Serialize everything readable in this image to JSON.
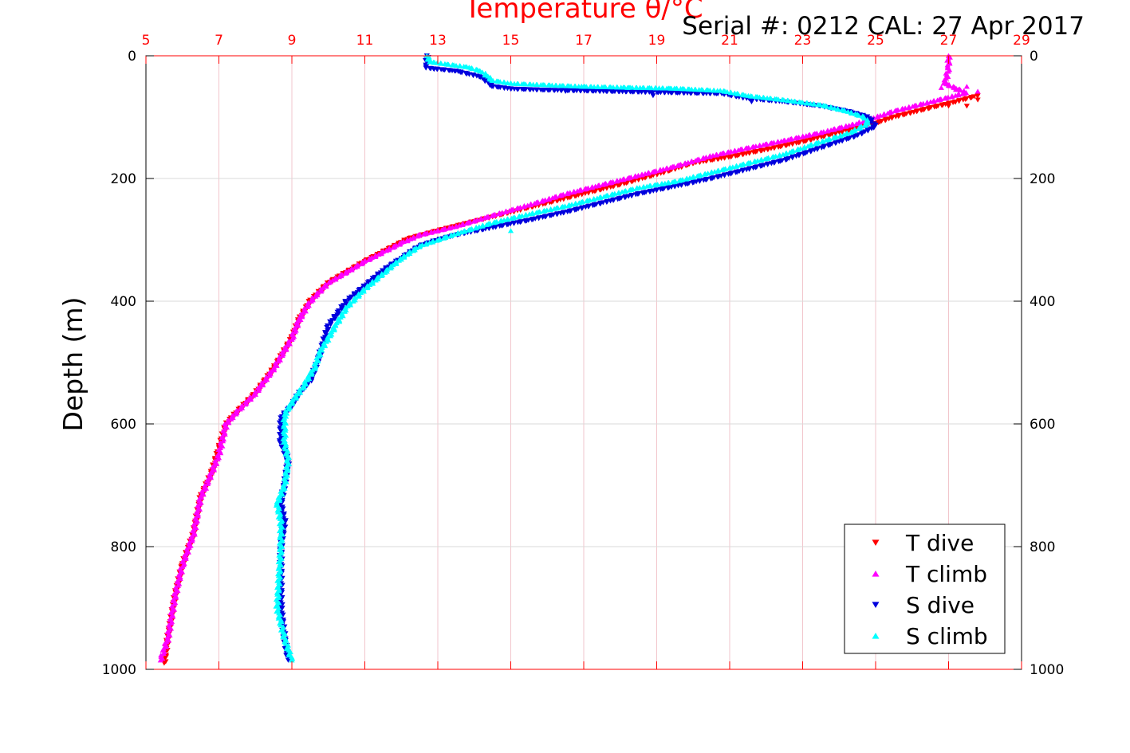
{
  "chart_data": {
    "type": "scatter",
    "title": "Temperature θ/°C",
    "subtitle": "Serial #: 0212  CAL: 27 Apr 2017",
    "xlabel": "Temperature θ/°C",
    "ylabel": "Depth (m)",
    "xlim": [
      5,
      29
    ],
    "ylim": [
      0,
      1000
    ],
    "y_reversed": true,
    "x_ticks": [
      5,
      7,
      9,
      11,
      13,
      15,
      17,
      19,
      21,
      23,
      25,
      27,
      29
    ],
    "y_ticks": [
      0,
      200,
      400,
      600,
      800,
      1000
    ],
    "grid": true,
    "legend_position": "bottom-right",
    "colors": {
      "top_axis": "#ff0000",
      "side_axis": "#000000",
      "grid_vertical": "#f2c6cc",
      "grid_horizontal": "#d9d9d9"
    },
    "series": [
      {
        "name": "T dive",
        "marker": "triangle-down",
        "color": "#ff0000",
        "profile": [
          [
            27.8,
            65
          ],
          [
            27.2,
            75
          ],
          [
            26.5,
            85
          ],
          [
            25.5,
            100
          ],
          [
            25.0,
            110
          ],
          [
            24.0,
            125
          ],
          [
            23.0,
            140
          ],
          [
            22.0,
            153
          ],
          [
            21.0,
            165
          ],
          [
            20.0,
            175
          ],
          [
            19.2,
            190
          ],
          [
            18.0,
            210
          ],
          [
            17.0,
            225
          ],
          [
            16.0,
            240
          ],
          [
            15.0,
            255
          ],
          [
            14.0,
            270
          ],
          [
            13.0,
            285
          ],
          [
            12.2,
            298
          ],
          [
            11.8,
            310
          ],
          [
            11.0,
            335
          ],
          [
            10.0,
            370
          ],
          [
            9.5,
            400
          ],
          [
            9.2,
            430
          ],
          [
            9.0,
            460
          ],
          [
            8.5,
            510
          ],
          [
            8.0,
            550
          ],
          [
            7.5,
            580
          ],
          [
            7.2,
            600
          ],
          [
            7.0,
            640
          ],
          [
            6.8,
            680
          ],
          [
            6.5,
            720
          ],
          [
            6.3,
            780
          ],
          [
            6.0,
            830
          ],
          [
            5.8,
            880
          ],
          [
            5.6,
            950
          ],
          [
            5.5,
            990
          ]
        ],
        "scatter": [
          [
            27.8,
            72
          ],
          [
            27.5,
            82
          ],
          [
            27.0,
            82
          ]
        ]
      },
      {
        "name": "T climb",
        "marker": "triangle-up",
        "color": "#ff00ff",
        "profile": [
          [
            27.0,
            0
          ],
          [
            27.0,
            20
          ],
          [
            26.9,
            45
          ],
          [
            27.3,
            55
          ],
          [
            27.5,
            60
          ],
          [
            26.5,
            75
          ],
          [
            25.5,
            90
          ],
          [
            25.0,
            100
          ],
          [
            24.5,
            110
          ],
          [
            23.5,
            125
          ],
          [
            22.5,
            138
          ],
          [
            21.5,
            150
          ],
          [
            20.5,
            163
          ],
          [
            19.5,
            180
          ],
          [
            18.5,
            195
          ],
          [
            17.5,
            210
          ],
          [
            16.5,
            225
          ],
          [
            15.5,
            243
          ],
          [
            14.5,
            260
          ],
          [
            13.5,
            278
          ],
          [
            12.5,
            292
          ],
          [
            12.0,
            305
          ],
          [
            11.5,
            320
          ],
          [
            11.0,
            335
          ],
          [
            10.0,
            370
          ],
          [
            9.5,
            400
          ],
          [
            9.2,
            430
          ],
          [
            9.0,
            460
          ],
          [
            8.5,
            510
          ],
          [
            8.0,
            550
          ],
          [
            7.5,
            580
          ],
          [
            7.2,
            600
          ],
          [
            7.0,
            650
          ],
          [
            6.8,
            680
          ],
          [
            6.5,
            720
          ],
          [
            6.3,
            780
          ],
          [
            6.0,
            830
          ],
          [
            5.8,
            880
          ],
          [
            5.6,
            950
          ],
          [
            5.4,
            985
          ]
        ],
        "scatter": [
          [
            27.5,
            50
          ],
          [
            27.2,
            55
          ],
          [
            26.8,
            52
          ],
          [
            27.8,
            58
          ]
        ]
      },
      {
        "name": "S dive",
        "marker": "triangle-down",
        "color": "#0000dd",
        "profile": [
          [
            12.7,
            0
          ],
          [
            12.7,
            20
          ],
          [
            13.5,
            25
          ],
          [
            14.2,
            35
          ],
          [
            14.5,
            50
          ],
          [
            15.0,
            54
          ],
          [
            16.0,
            56
          ],
          [
            20.8,
            62
          ],
          [
            21.5,
            70
          ],
          [
            22.5,
            75
          ],
          [
            23.5,
            82
          ],
          [
            24.2,
            90
          ],
          [
            24.8,
            100
          ],
          [
            25.0,
            115
          ],
          [
            24.5,
            130
          ],
          [
            23.5,
            150
          ],
          [
            22.5,
            170
          ],
          [
            21.5,
            185
          ],
          [
            20.5,
            200
          ],
          [
            19.5,
            213
          ],
          [
            18.5,
            225
          ],
          [
            17.5,
            240
          ],
          [
            16.5,
            255
          ],
          [
            15.5,
            268
          ],
          [
            14.5,
            280
          ],
          [
            13.5,
            292
          ],
          [
            13.0,
            300
          ],
          [
            12.5,
            310
          ],
          [
            12.0,
            330
          ],
          [
            11.5,
            350
          ],
          [
            11.0,
            375
          ],
          [
            10.5,
            400
          ],
          [
            10.0,
            440
          ],
          [
            9.8,
            480
          ],
          [
            9.7,
            500
          ],
          [
            9.5,
            530
          ],
          [
            9.2,
            550
          ],
          [
            9.0,
            570
          ],
          [
            8.7,
            590
          ],
          [
            8.7,
            630
          ],
          [
            8.9,
            660
          ],
          [
            8.8,
            700
          ],
          [
            8.7,
            730
          ],
          [
            8.8,
            760
          ],
          [
            8.7,
            800
          ],
          [
            8.7,
            900
          ],
          [
            8.8,
            950
          ],
          [
            8.9,
            985
          ]
        ],
        "scatter": [
          [
            12.9,
            22
          ],
          [
            14.5,
            45
          ],
          [
            16.5,
            58
          ],
          [
            18.9,
            65
          ],
          [
            21.6,
            75
          ],
          [
            23.2,
            80
          ]
        ]
      },
      {
        "name": "S climb",
        "marker": "triangle-up",
        "color": "#00ffff",
        "profile": [
          [
            12.7,
            0
          ],
          [
            12.8,
            10
          ],
          [
            13.8,
            18
          ],
          [
            14.2,
            25
          ],
          [
            14.5,
            40
          ],
          [
            15.0,
            45
          ],
          [
            17.0,
            50
          ],
          [
            19.5,
            53
          ],
          [
            20.8,
            57
          ],
          [
            21.5,
            65
          ],
          [
            22.5,
            72
          ],
          [
            23.5,
            80
          ],
          [
            24.2,
            90
          ],
          [
            24.7,
            100
          ],
          [
            24.8,
            110
          ],
          [
            24.3,
            125
          ],
          [
            23.5,
            140
          ],
          [
            22.5,
            160
          ],
          [
            21.5,
            175
          ],
          [
            20.5,
            190
          ],
          [
            19.5,
            205
          ],
          [
            18.5,
            215
          ],
          [
            17.5,
            230
          ],
          [
            16.5,
            245
          ],
          [
            15.5,
            258
          ],
          [
            14.5,
            272
          ],
          [
            13.5,
            290
          ],
          [
            13.0,
            300
          ],
          [
            12.5,
            310
          ],
          [
            12.0,
            330
          ],
          [
            11.5,
            355
          ],
          [
            11.0,
            380
          ],
          [
            10.5,
            410
          ],
          [
            10.2,
            440
          ],
          [
            9.8,
            480
          ],
          [
            9.6,
            510
          ],
          [
            9.3,
            540
          ],
          [
            9.0,
            565
          ],
          [
            8.8,
            585
          ],
          [
            8.8,
            630
          ],
          [
            8.9,
            660
          ],
          [
            8.8,
            700
          ],
          [
            8.6,
            730
          ],
          [
            8.7,
            760
          ],
          [
            8.7,
            800
          ],
          [
            8.6,
            900
          ],
          [
            8.8,
            950
          ],
          [
            9.0,
            985
          ]
        ],
        "scatter": [
          [
            13.4,
            15
          ],
          [
            17.0,
            50
          ],
          [
            18.2,
            52
          ],
          [
            19.4,
            53
          ],
          [
            15.0,
            285
          ]
        ]
      }
    ]
  }
}
